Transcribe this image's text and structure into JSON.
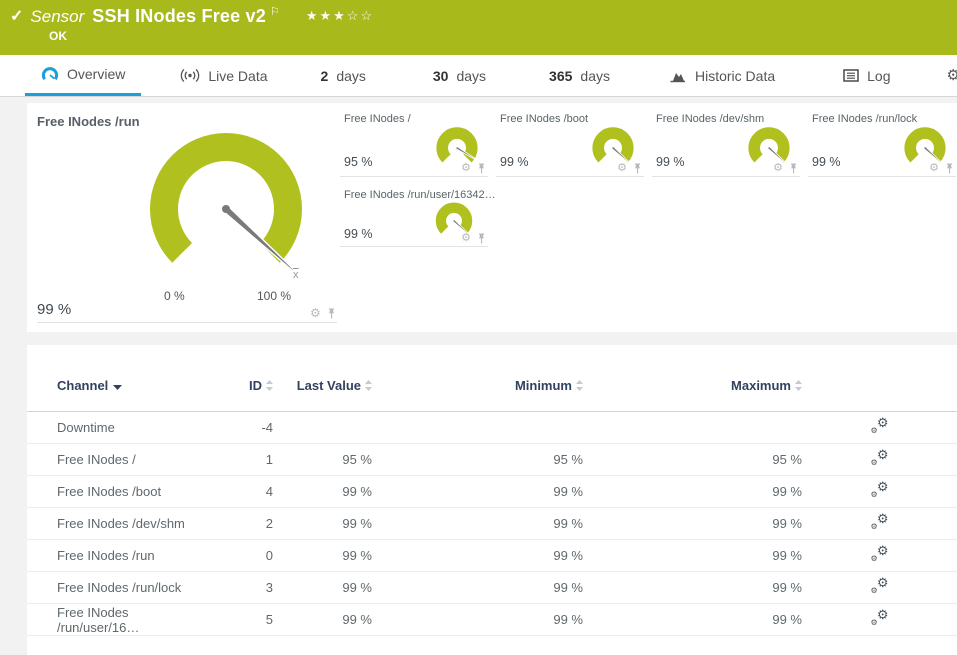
{
  "header": {
    "kind_label": "Sensor",
    "title": "SSH INodes Free v2",
    "status": "OK",
    "rating": "★★★☆☆",
    "bg_color": "#a8b91c"
  },
  "tabs": [
    {
      "label": "Overview",
      "active": true
    },
    {
      "label": "Live Data"
    },
    {
      "num": "2",
      "unit": "days"
    },
    {
      "num": "30",
      "unit": "days"
    },
    {
      "num": "365",
      "unit": "days"
    },
    {
      "label": "Historic Data"
    },
    {
      "label": "Log"
    },
    {
      "label": "Settings"
    }
  ],
  "colors": {
    "gauge_green": "#b0c11f",
    "needle_gray": "#7a7a7a",
    "active_tab_blue": "#1b9fd9",
    "table_header_navy": "#32425e"
  },
  "gauges": {
    "primary": {
      "title": "Free INodes /run",
      "value": "99 %",
      "value_pct": 99,
      "min_label": "0 %",
      "max_label": "100 %",
      "avg_marker": "x"
    },
    "secondary": [
      {
        "title": "Free INodes /",
        "value": "95 %",
        "value_pct": 95
      },
      {
        "title": "Free INodes /boot",
        "value": "99 %",
        "value_pct": 99
      },
      {
        "title": "Free INodes /dev/shm",
        "value": "99 %",
        "value_pct": 99
      },
      {
        "title": "Free INodes /run/lock",
        "value": "99 %",
        "value_pct": 99
      },
      {
        "title": "Free INodes /run/user/16342…",
        "value": "99 %",
        "value_pct": 99
      }
    ]
  },
  "table": {
    "columns": {
      "channel": "Channel",
      "id": "ID",
      "last": "Last Value",
      "min": "Minimum",
      "max": "Maximum"
    },
    "rows": [
      {
        "channel": "Downtime",
        "id": "-4",
        "last": "",
        "min": "",
        "max": ""
      },
      {
        "channel": "Free INodes /",
        "id": "1",
        "last": "95 %",
        "min": "95 %",
        "max": "95 %"
      },
      {
        "channel": "Free INodes /boot",
        "id": "4",
        "last": "99 %",
        "min": "99 %",
        "max": "99 %"
      },
      {
        "channel": "Free INodes /dev/shm",
        "id": "2",
        "last": "99 %",
        "min": "99 %",
        "max": "99 %"
      },
      {
        "channel": "Free INodes /run",
        "id": "0",
        "last": "99 %",
        "min": "99 %",
        "max": "99 %"
      },
      {
        "channel": "Free INodes /run/lock",
        "id": "3",
        "last": "99 %",
        "min": "99 %",
        "max": "99 %"
      },
      {
        "channel": "Free INodes /run/user/16…",
        "id": "5",
        "last": "99 %",
        "min": "99 %",
        "max": "99 %"
      }
    ]
  }
}
